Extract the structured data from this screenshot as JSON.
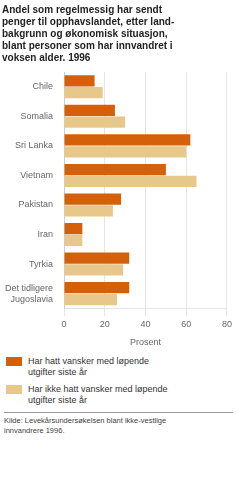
{
  "chart_data": {
    "type": "bar",
    "orientation": "horizontal",
    "title": "Andel som regelmessig har sendt\npenger til opphavslandet, etter land-\nbakgrunn og økonomisk situasjon,\nblant personer som har innvandret i\nvoksen alder. 1996",
    "categories": [
      "Chile",
      "Somalia",
      "Sri Lanka",
      "Vietnam",
      "Pakistan",
      "Iran",
      "Tyrkia",
      "Det tidligere\nJugoslavia"
    ],
    "series": [
      {
        "name": "Har hatt vansker med løpende\nutgifter siste år",
        "color": "#d4600a",
        "values": [
          15,
          25,
          62,
          50,
          28,
          9,
          32,
          32
        ]
      },
      {
        "name": "Har ikke hatt vansker med løpende\nutgifter siste år",
        "color": "#e8c88a",
        "values": [
          19,
          30,
          60,
          65,
          24,
          9,
          29,
          26
        ]
      }
    ],
    "xlabel": "Prosent",
    "xlim": [
      0,
      80
    ],
    "xticks": [
      0,
      20,
      40,
      60,
      80
    ],
    "grid": true,
    "legend": "bottom",
    "annotations": [
      "Kilde: Levekårsundersøkelsen blant ikke-vestlige\ninnvandrere 1996."
    ]
  }
}
